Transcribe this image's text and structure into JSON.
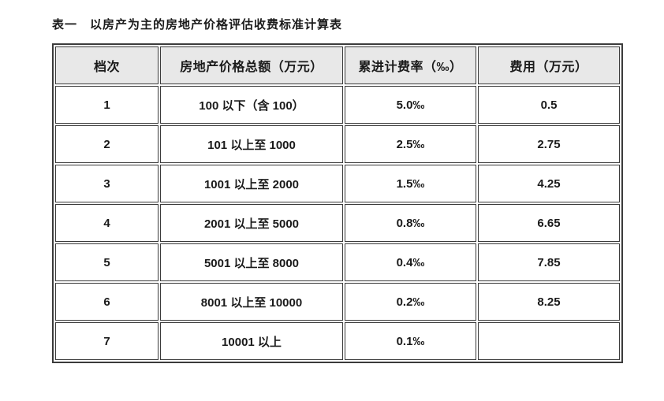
{
  "page": {
    "title": "表一　以房产为主的房地产价格评估收费标准计算表"
  },
  "table": {
    "headers": [
      "档次",
      "房地产价格总额（万元）",
      "累进计费率（‰）",
      "费用（万元）"
    ],
    "rows": [
      {
        "grade": "1",
        "price_range": "100 以下（含 100）",
        "rate": "5.0‰",
        "fee": "0.5"
      },
      {
        "grade": "2",
        "price_range": "101 以上至 1000",
        "rate": "2.5‰",
        "fee": "2.75"
      },
      {
        "grade": "3",
        "price_range": "1001 以上至 2000",
        "rate": "1.5‰",
        "fee": "4.25"
      },
      {
        "grade": "4",
        "price_range": "2001 以上至 5000",
        "rate": "0.8‰",
        "fee": "6.65"
      },
      {
        "grade": "5",
        "price_range": "5001 以上至 8000",
        "rate": "0.4‰",
        "fee": "7.85"
      },
      {
        "grade": "6",
        "price_range": "8001 以上至 10000",
        "rate": "0.2‰",
        "fee": "8.25"
      },
      {
        "grade": "7",
        "price_range": "10001 以上",
        "rate": "0.1‰",
        "fee": ""
      }
    ],
    "colors": {
      "header_bg": "#e8e8e8",
      "border": "#3b3b3b",
      "text": "#1a1a1a"
    }
  }
}
